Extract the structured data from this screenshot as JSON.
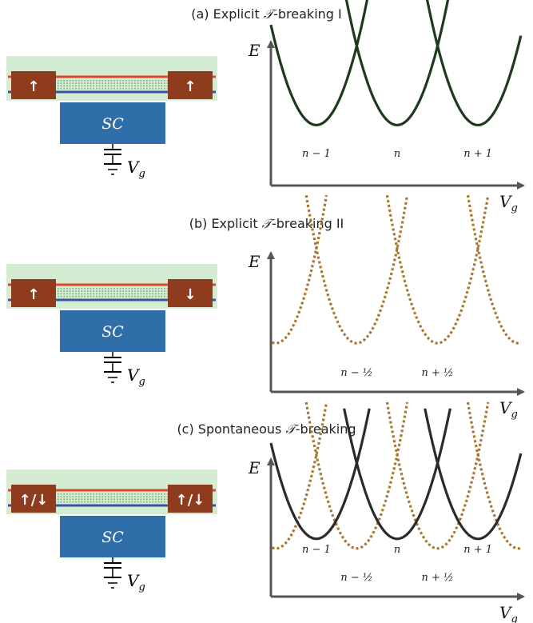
{
  "panels": [
    {
      "title_prefix": "(a) Explicit ",
      "title_symbol": "𝒯",
      "title_suffix": "-breaking I",
      "spins": [
        "↑",
        "↑"
      ],
      "sc_label": "SC",
      "gate_label": "V",
      "gate_sub": "g",
      "axis_y": "E",
      "axis_x": "V",
      "axis_x_sub": "g",
      "curve_style": "solid",
      "curve_color": "#1d3a1d",
      "labels": [
        "n − 1",
        "n",
        "n + 1"
      ]
    },
    {
      "title_prefix": "(b) Explicit ",
      "title_symbol": "𝒯",
      "title_suffix": "-breaking II",
      "spins": [
        "↑",
        "↓"
      ],
      "sc_label": "SC",
      "gate_label": "V",
      "gate_sub": "g",
      "axis_y": "E",
      "axis_x": "V",
      "axis_x_sub": "g",
      "curve_style": "dotted",
      "curve_color": "#a8762e",
      "labels": [
        "n − ½",
        "n + ½"
      ]
    },
    {
      "title_prefix": "(c) Spontaneous ",
      "title_symbol": "𝒯",
      "title_suffix": "-breaking",
      "spins": [
        "↑/↓",
        "↑/↓"
      ],
      "sc_label": "SC",
      "gate_label": "V",
      "gate_sub": "g",
      "axis_y": "E",
      "axis_x": "V",
      "axis_x_sub": "g",
      "curve_style": "both",
      "curve_color": "#2b2b2b",
      "labels_solid": [
        "n − 1",
        "n",
        "n + 1"
      ],
      "labels_dotted": [
        "n − ½",
        "n + ½"
      ]
    }
  ],
  "colors": {
    "background_strip": "#d4ecd2",
    "red_wire": "#e2452e",
    "blue_wire": "#3a4fa8",
    "magnet": "#8f3b1e",
    "superconductor": "#2f6ea8",
    "solid_curve_a": "#1d3a1d",
    "solid_curve_c": "#2b2b2b",
    "dotted_curve": "#a8762e",
    "axis": "#555555"
  }
}
